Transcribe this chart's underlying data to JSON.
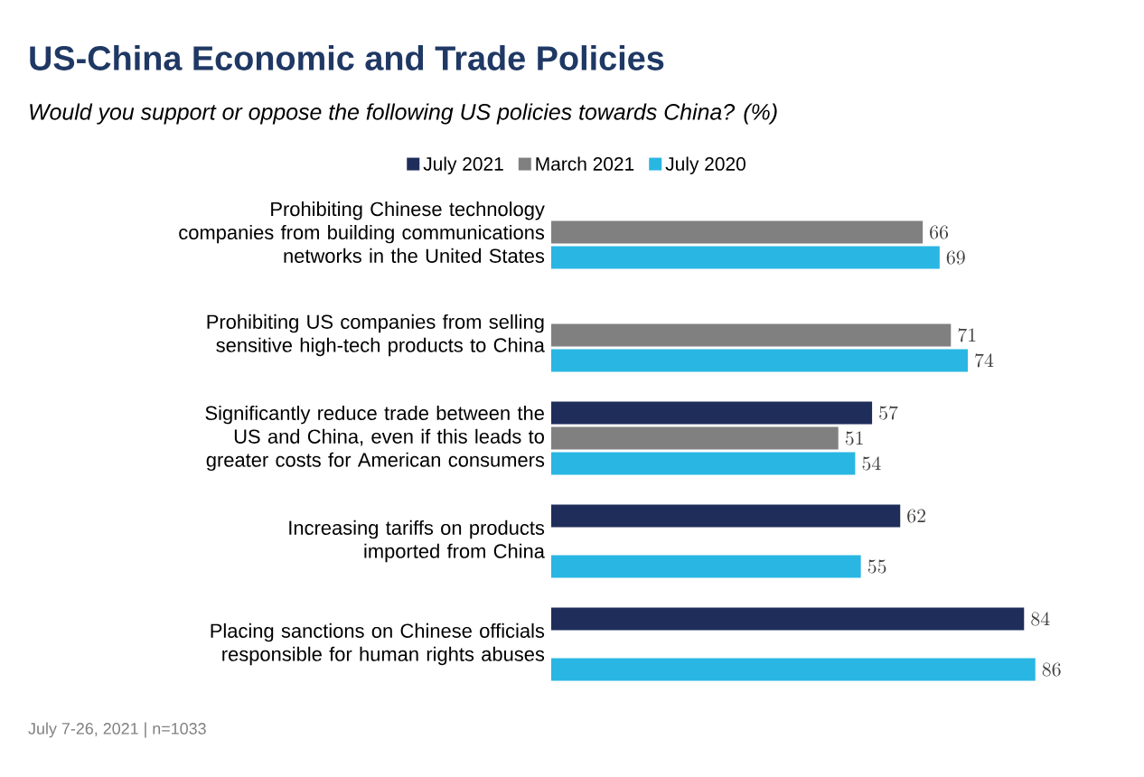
{
  "chart_data": {
    "type": "bar",
    "orientation": "horizontal",
    "title": "US-China Economic and Trade Policies",
    "subtitle": "Would you support or oppose the following US policies towards China? (%)",
    "categories": [
      "Prohibiting Chinese technology companies from building communications networks in the United States",
      "Prohibiting US companies from selling sensitive high-tech products to China",
      "Significantly reduce trade between the US and China, even if this leads to greater costs for American consumers",
      "Increasing tariffs on products imported from China",
      "Placing sanctions on Chinese officials responsible for human rights abuses"
    ],
    "series": [
      {
        "name": "July 2021",
        "color": "#1f2d5a",
        "values": [
          null,
          null,
          57,
          62,
          84
        ]
      },
      {
        "name": "March 2021",
        "color": "#808080",
        "values": [
          66,
          71,
          51,
          null,
          null
        ]
      },
      {
        "name": "July 2020",
        "color": "#29b6e3",
        "values": [
          69,
          74,
          54,
          55,
          86
        ]
      }
    ],
    "data_labels": true,
    "legend": "top",
    "annotations": [
      "July 7-26, 2021 | n=1033"
    ]
  }
}
